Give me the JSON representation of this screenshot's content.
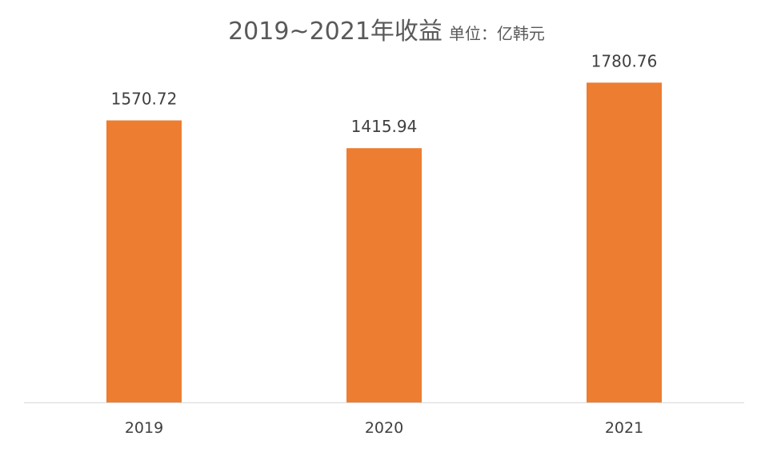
{
  "chart_data": {
    "type": "bar",
    "title": "2019~2021年收益",
    "subtitle": "单位：亿韩元",
    "categories": [
      "2019",
      "2020",
      "2021"
    ],
    "values": [
      1570.72,
      1415.94,
      1780.76
    ],
    "data_labels": [
      "1570.72",
      "1415.94",
      "1780.76"
    ],
    "xlabel": "",
    "ylabel": "",
    "ylim": [
      0,
      1800
    ],
    "grid": false,
    "legend": "none",
    "bar_color": "#ED7D31",
    "axis_color": "#D9D9D9",
    "text_color": "#404040"
  }
}
